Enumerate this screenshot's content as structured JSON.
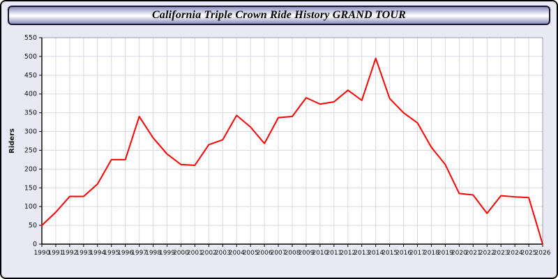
{
  "header": {
    "title": "California Triple Crown Ride History GRAND TOUR"
  },
  "chart_data": {
    "type": "line",
    "title": "California Triple Crown Ride History GRAND TOUR",
    "xlabel": "",
    "ylabel": "Riders",
    "ylim": [
      0,
      550
    ],
    "ytick_step": 50,
    "grid": true,
    "legend": "none",
    "line_color": "#ff0000",
    "x": [
      1990,
      1991,
      1992,
      1993,
      1994,
      1995,
      1996,
      1997,
      1998,
      1999,
      2000,
      2001,
      2002,
      2003,
      2004,
      2005,
      2006,
      2007,
      2008,
      2009,
      2010,
      2011,
      2012,
      2013,
      2014,
      2015,
      2016,
      2017,
      2018,
      2019,
      2020,
      2021,
      2022,
      2023,
      2024,
      2025,
      2026
    ],
    "values": [
      50,
      85,
      127,
      127,
      160,
      225,
      225,
      340,
      283,
      240,
      212,
      210,
      265,
      278,
      343,
      312,
      268,
      337,
      340,
      390,
      373,
      379,
      410,
      383,
      495,
      388,
      350,
      323,
      258,
      212,
      135,
      131,
      82,
      129,
      126,
      124,
      0
    ]
  }
}
